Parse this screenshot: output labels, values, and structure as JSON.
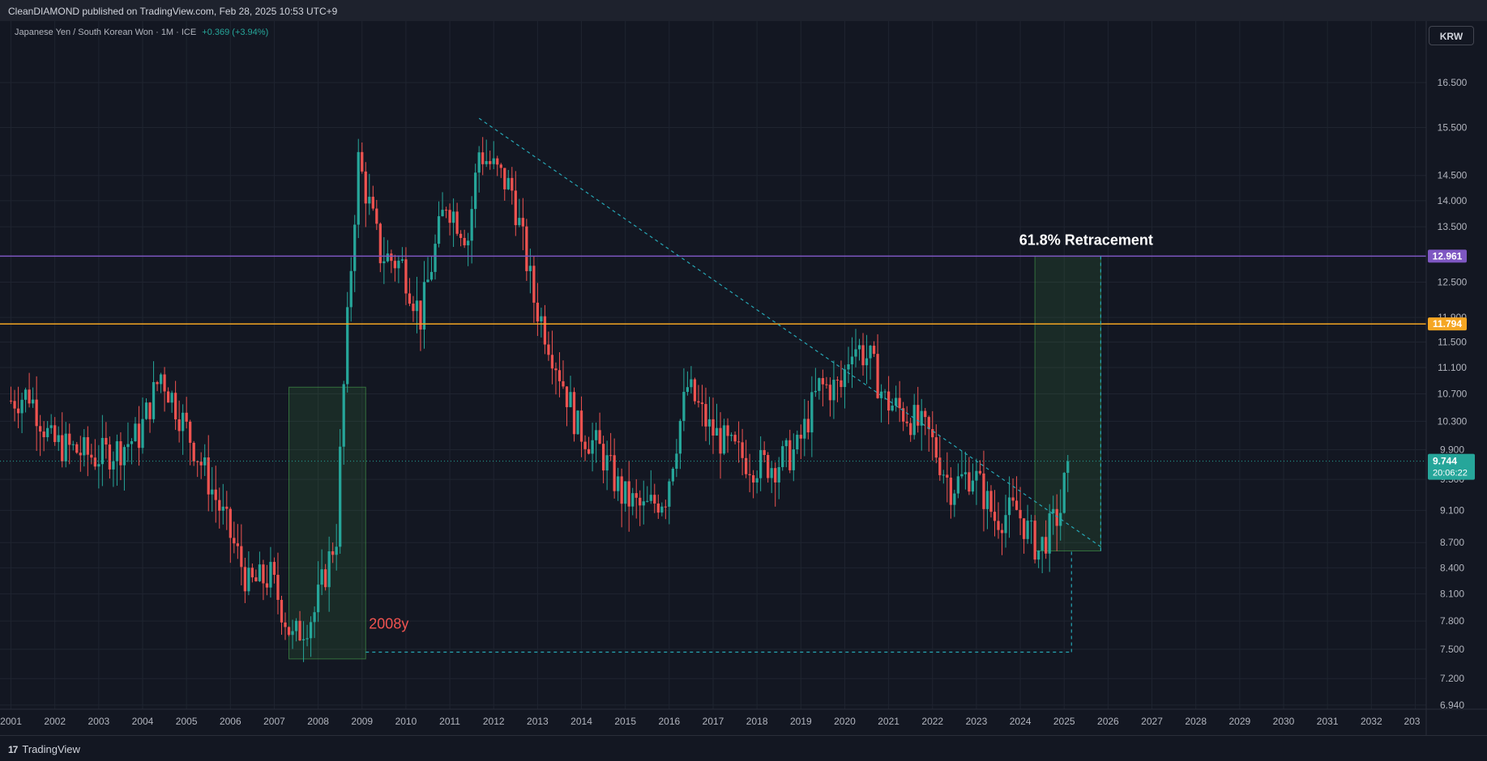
{
  "header": {
    "published": "CleanDIAMOND published on TradingView.com, Feb 28, 2025 10:53 UTC+9"
  },
  "legend": {
    "symbol": "Japanese Yen / South Korean Won · 1M · ICE",
    "change": "+0.369 (+3.94%)"
  },
  "currency_button": "KRW",
  "footer": {
    "brand": "TradingView",
    "logo": "17"
  },
  "colors": {
    "background": "#131722",
    "up": "#26a69a",
    "down": "#ef5350",
    "purple_line": "#7e57c2",
    "orange_line": "#f5a623",
    "dashed": "#26a7b5"
  },
  "chart_data": {
    "type": "candlestick",
    "symbol": "JPYKRW",
    "interval": "1M",
    "y_scale": "log",
    "ylim": [
      6.9,
      17.3
    ],
    "xlim": [
      "2000-10",
      "2033-04"
    ],
    "y_ticks": [
      "16.500",
      "15.500",
      "14.500",
      "14.000",
      "13.500",
      "12.500",
      "11.900",
      "11.500",
      "11.100",
      "10.700",
      "10.300",
      "9.900",
      "9.500",
      "9.100",
      "8.700",
      "8.400",
      "8.100",
      "7.800",
      "7.500",
      "7.200",
      "6.940"
    ],
    "x_ticks": [
      "2001",
      "2002",
      "2003",
      "2004",
      "2005",
      "2006",
      "2007",
      "2008",
      "2009",
      "2010",
      "2011",
      "2012",
      "2013",
      "2014",
      "2015",
      "2016",
      "2017",
      "2018",
      "2019",
      "2020",
      "2021",
      "2022",
      "2023",
      "2024",
      "2025",
      "2026",
      "2027",
      "2028",
      "2029",
      "2030",
      "2031",
      "2032",
      "203"
    ],
    "horizontal_lines": [
      {
        "value": 12.961,
        "label": "12.961",
        "color": "#7e57c2"
      },
      {
        "value": 11.794,
        "label": "11.794",
        "color": "#f5a623"
      }
    ],
    "last_price": {
      "value": 9.744,
      "label": "9.744",
      "countdown": "20:06:22"
    },
    "annotations": [
      {
        "text": "61.8% Retracement",
        "color": "#ffffff"
      },
      {
        "text": "2008y",
        "color": "#ef5350"
      }
    ],
    "trendline": {
      "from": [
        "2011-09",
        15.7
      ],
      "to": [
        "2025-11",
        8.65
      ]
    },
    "rectangles": [
      {
        "from": [
          "2007-05",
          7.4
        ],
        "to": [
          "2009-02",
          10.8
        ]
      },
      {
        "from": [
          "2024-05",
          8.6
        ],
        "to": [
          "2025-11",
          12.961
        ]
      }
    ],
    "dashed_guides": [
      {
        "from": [
          "2009-02",
          7.47
        ],
        "to": [
          "2025-03",
          7.47
        ]
      },
      {
        "from": [
          "2025-03",
          7.47
        ],
        "to": [
          "2025-03",
          8.6
        ]
      },
      {
        "from": [
          "2025-11",
          8.6
        ],
        "to": [
          "2025-11",
          12.961
        ]
      }
    ],
    "price_path": [
      [
        "2001-01",
        10.6
      ],
      [
        "2001-06",
        10.7
      ],
      [
        "2001-12",
        10.0
      ],
      [
        "2002-06",
        9.9
      ],
      [
        "2002-12",
        9.8
      ],
      [
        "2003-06",
        9.9
      ],
      [
        "2003-12",
        10.1
      ],
      [
        "2004-06",
        11.0
      ],
      [
        "2004-12",
        10.3
      ],
      [
        "2005-06",
        9.6
      ],
      [
        "2005-12",
        8.9
      ],
      [
        "2006-06",
        8.2
      ],
      [
        "2006-12",
        8.3
      ],
      [
        "2007-06",
        7.6
      ],
      [
        "2007-12",
        7.9
      ],
      [
        "2008-06",
        8.8
      ],
      [
        "2008-12",
        14.8
      ],
      [
        "2009-06",
        13.0
      ],
      [
        "2009-12",
        12.8
      ],
      [
        "2010-05",
        11.9
      ],
      [
        "2010-12",
        14.0
      ],
      [
        "2011-06",
        13.3
      ],
      [
        "2011-09",
        15.0
      ],
      [
        "2012-06",
        14.2
      ],
      [
        "2012-12",
        12.2
      ],
      [
        "2013-06",
        11.2
      ],
      [
        "2013-12",
        10.2
      ],
      [
        "2014-06",
        9.9
      ],
      [
        "2014-12",
        9.3
      ],
      [
        "2015-06",
        9.1
      ],
      [
        "2015-12",
        9.3
      ],
      [
        "2016-06",
        10.8
      ],
      [
        "2016-12",
        10.2
      ],
      [
        "2017-06",
        9.9
      ],
      [
        "2017-12",
        9.7
      ],
      [
        "2018-06",
        9.7
      ],
      [
        "2018-12",
        9.9
      ],
      [
        "2019-06",
        10.8
      ],
      [
        "2019-12",
        10.8
      ],
      [
        "2020-03",
        11.5
      ],
      [
        "2020-08",
        11.2
      ],
      [
        "2020-12",
        10.6
      ],
      [
        "2021-06",
        10.4
      ],
      [
        "2021-12",
        10.1
      ],
      [
        "2022-06",
        9.4
      ],
      [
        "2022-12",
        9.6
      ],
      [
        "2023-06",
        9.0
      ],
      [
        "2023-12",
        9.1
      ],
      [
        "2024-06",
        8.6
      ],
      [
        "2024-12",
        9.1
      ],
      [
        "2025-02",
        9.744
      ]
    ]
  }
}
